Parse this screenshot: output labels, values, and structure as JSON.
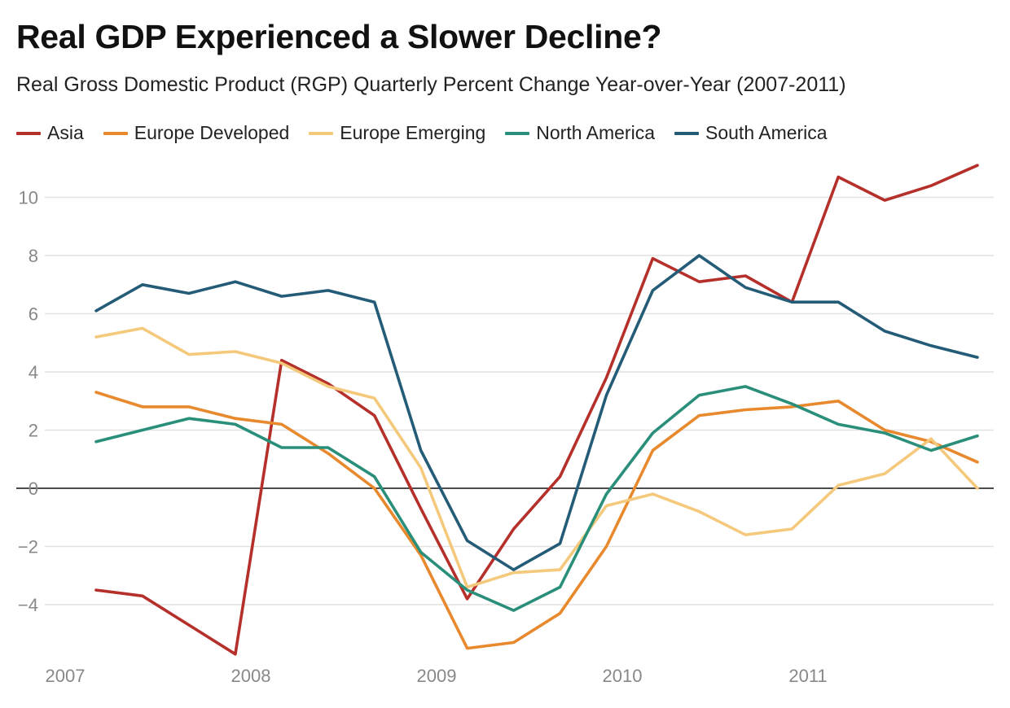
{
  "title": "Real GDP Experienced a Slower Decline?",
  "subtitle": "Real Gross Domestic Product (RGP) Quarterly Percent Change Year-over-Year (2007-2011)",
  "chart_data": {
    "type": "line",
    "title": "Real GDP Experienced a Slower Decline?",
    "subtitle": "Real Gross Domestic Product (RGP) Quarterly Percent Change Year-over-Year (2007-2011)",
    "xlabel": "",
    "ylabel": "",
    "x": [
      "2007-Q1",
      "2007-Q2",
      "2007-Q3",
      "2007-Q4",
      "2008-Q1",
      "2008-Q2",
      "2008-Q3",
      "2008-Q4",
      "2009-Q1",
      "2009-Q2",
      "2009-Q3",
      "2009-Q4",
      "2010-Q1",
      "2010-Q2",
      "2010-Q3",
      "2010-Q4",
      "2011-Q1",
      "2011-Q2",
      "2011-Q3",
      "2011-Q4"
    ],
    "x_ticks": [
      "2007",
      "2008",
      "2009",
      "2010",
      "2011"
    ],
    "y_ticks": [
      -4,
      -2,
      0,
      2,
      4,
      6,
      8,
      10
    ],
    "y_tick_labels": [
      "−4",
      "−2",
      "0",
      "2",
      "4",
      "6",
      "8",
      "10"
    ],
    "ylim": [
      -6,
      11.5
    ],
    "grid": true,
    "zero_line": true,
    "legend_position": "top-left",
    "series": [
      {
        "name": "Asia",
        "color": "#b5302a",
        "values": [
          -3.5,
          -3.7,
          -4.7,
          -5.7,
          4.4,
          3.6,
          2.5,
          -0.7,
          -3.8,
          -1.4,
          0.4,
          3.8,
          7.9,
          7.1,
          7.3,
          6.4,
          10.7,
          9.9,
          10.4,
          11.1
        ]
      },
      {
        "name": "Europe Developed",
        "color": "#e8892e",
        "values": [
          3.3,
          2.8,
          2.8,
          2.4,
          2.2,
          1.2,
          0.0,
          -2.3,
          -5.5,
          -5.3,
          -4.3,
          -2.0,
          1.3,
          2.5,
          2.7,
          2.8,
          3.0,
          2.0,
          1.6,
          0.9
        ]
      },
      {
        "name": "Europe Emerging",
        "color": "#f5c97c",
        "values": [
          5.2,
          5.5,
          4.6,
          4.7,
          4.3,
          3.5,
          3.1,
          0.7,
          -3.4,
          -2.9,
          -2.8,
          -0.6,
          -0.2,
          -0.8,
          -1.6,
          -1.4,
          0.1,
          0.5,
          1.7,
          0.0
        ]
      },
      {
        "name": "North America",
        "color": "#2a8f7a",
        "values": [
          1.6,
          2.0,
          2.4,
          2.2,
          1.4,
          1.4,
          0.4,
          -2.2,
          -3.5,
          -4.2,
          -3.4,
          -0.2,
          1.9,
          3.2,
          3.5,
          2.9,
          2.2,
          1.9,
          1.3,
          1.8
        ]
      },
      {
        "name": "South America",
        "color": "#245c78",
        "values": [
          6.1,
          7.0,
          6.7,
          7.1,
          6.6,
          6.8,
          6.4,
          1.3,
          -1.8,
          -2.8,
          -1.9,
          3.2,
          6.8,
          8.0,
          6.9,
          6.4,
          6.4,
          5.4,
          4.9,
          4.5
        ]
      }
    ]
  }
}
